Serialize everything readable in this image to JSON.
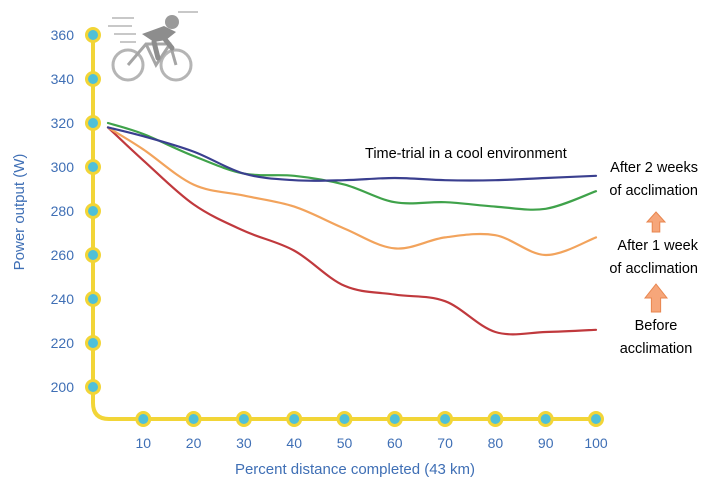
{
  "chart_data": {
    "type": "line",
    "xlabel": "Percent distance completed (43 km)",
    "ylabel": "Power output (W)",
    "xlim": [
      0,
      100
    ],
    "ylim": [
      190,
      360
    ],
    "x_ticks": [
      10,
      20,
      30,
      40,
      50,
      60,
      70,
      80,
      90,
      100
    ],
    "y_ticks": [
      200,
      220,
      240,
      260,
      280,
      300,
      320,
      340,
      360
    ],
    "grid": false,
    "colors": {
      "axis": "#f2d537",
      "marker": "#4fc0d8",
      "tick_text": "#3f6fb5",
      "arrow": "#f6a67a"
    },
    "icon": "cyclist-icon",
    "series": [
      {
        "label": "Time-trial in a cool environment",
        "color": "#3a3f8f",
        "x": [
          0,
          10,
          20,
          30,
          40,
          50,
          60,
          70,
          80,
          90,
          100
        ],
        "y": [
          318,
          314,
          307,
          297,
          294,
          294,
          295,
          294,
          294,
          295,
          296
        ]
      },
      {
        "label": "After 2 weeks of acclimation",
        "color": "#3fa24a",
        "x": [
          0,
          10,
          20,
          30,
          40,
          50,
          60,
          70,
          80,
          90,
          100
        ],
        "y": [
          320,
          315,
          305,
          297,
          296,
          292,
          284,
          284,
          282,
          281,
          289
        ]
      },
      {
        "label": "After 1 week of acclimation",
        "color": "#f2a35c",
        "x": [
          0,
          10,
          20,
          30,
          40,
          50,
          60,
          70,
          80,
          90,
          100
        ],
        "y": [
          318,
          308,
          292,
          287,
          282,
          272,
          263,
          268,
          269,
          260,
          268
        ]
      },
      {
        "label": "Before acclimation",
        "color": "#c0393d",
        "x": [
          0,
          10,
          20,
          30,
          40,
          50,
          60,
          70,
          80,
          90,
          100
        ],
        "y": [
          318,
          303,
          283,
          271,
          262,
          246,
          242,
          239,
          225,
          225,
          226
        ]
      }
    ],
    "annotations": [
      {
        "lines": [
          "Time-trial in a cool environment"
        ],
        "color": "#3a3f8f"
      },
      {
        "lines": [
          "After 2 weeks",
          "of acclimation"
        ],
        "color": "#3fa24a"
      },
      {
        "lines": [
          "After 1 week",
          "of acclimation"
        ],
        "color": "#e8763a"
      },
      {
        "lines": [
          "Before",
          "acclimation"
        ],
        "color": "#c0393d"
      }
    ]
  }
}
